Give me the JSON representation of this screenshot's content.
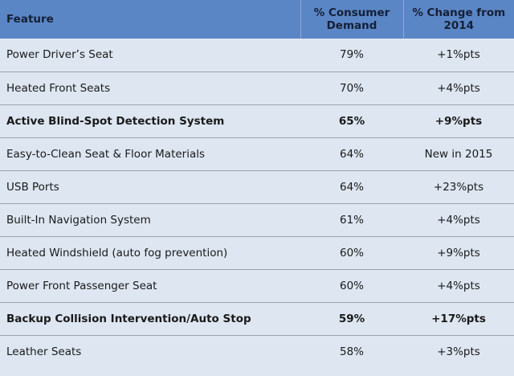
{
  "chart_data": {
    "type": "table",
    "columns": [
      "Feature",
      "% Consumer Demand",
      "% Change from 2014"
    ],
    "rows": [
      {
        "feature": "Power Driver’s Seat",
        "demand": "79%",
        "change": "+1%pts",
        "bold": false
      },
      {
        "feature": "Heated Front Seats",
        "demand": "70%",
        "change": "+4%pts",
        "bold": false
      },
      {
        "feature": "Active Blind-Spot Detection System",
        "demand": "65%",
        "change": "+9%pts",
        "bold": true
      },
      {
        "feature": "Easy-to-Clean Seat & Floor Materials",
        "demand": "64%",
        "change": "New in 2015",
        "bold": false
      },
      {
        "feature": "USB Ports",
        "demand": "64%",
        "change": "+23%pts",
        "bold": false
      },
      {
        "feature": "Built-In Navigation System",
        "demand": "61%",
        "change": "+4%pts",
        "bold": false
      },
      {
        "feature": "Heated Windshield (auto fog prevention)",
        "demand": "60%",
        "change": "+9%pts",
        "bold": false
      },
      {
        "feature": "Power Front Passenger Seat",
        "demand": "60%",
        "change": "+4%pts",
        "bold": false
      },
      {
        "feature": "Backup Collision Intervention/Auto Stop",
        "demand": "59%",
        "change": "+17%pts",
        "bold": true
      },
      {
        "feature": "Leather Seats",
        "demand": "58%",
        "change": "+3%pts",
        "bold": false
      }
    ]
  },
  "colors": {
    "header_bg": "#5b86c5",
    "body_bg": "#dde6f1",
    "row_divider": "#9aa3ad"
  }
}
